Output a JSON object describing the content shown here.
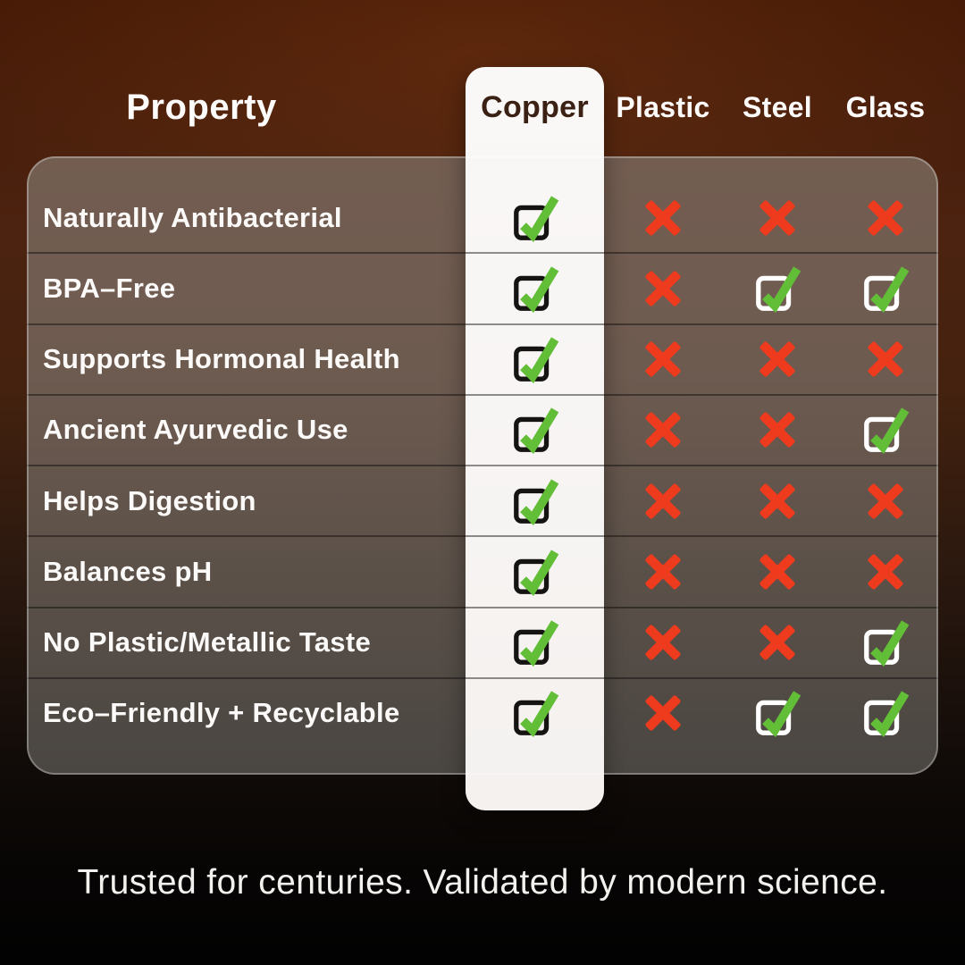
{
  "chart_data": {
    "type": "table",
    "property_header": "Property",
    "columns": [
      "Copper",
      "Plastic",
      "Steel",
      "Glass"
    ],
    "rows": [
      {
        "label": "Naturally Antibacterial",
        "values": [
          "check",
          "cross",
          "cross",
          "cross"
        ]
      },
      {
        "label": "BPA–Free",
        "values": [
          "check",
          "cross",
          "check",
          "check"
        ]
      },
      {
        "label": "Supports Hormonal Health",
        "values": [
          "check",
          "cross",
          "cross",
          "cross"
        ]
      },
      {
        "label": "Ancient Ayurvedic Use",
        "values": [
          "check",
          "cross",
          "cross",
          "check"
        ]
      },
      {
        "label": "Helps Digestion",
        "values": [
          "check",
          "cross",
          "cross",
          "cross"
        ]
      },
      {
        "label": "Balances pH",
        "values": [
          "check",
          "cross",
          "cross",
          "cross"
        ]
      },
      {
        "label": "No Plastic/Metallic Taste",
        "values": [
          "check",
          "cross",
          "cross",
          "check"
        ]
      },
      {
        "label": "Eco–Friendly + Recyclable",
        "values": [
          "check",
          "cross",
          "check",
          "check"
        ]
      }
    ],
    "caption": "Trusted for centuries. Validated by modern science."
  },
  "colors": {
    "check_green": "#62bd37",
    "cross_red": "#ee3a1d",
    "copper_box_outline": "#161412",
    "other_box_outline": "#ffffff",
    "pill_bg": "#f7f5f3",
    "copper_text": "#3a2114"
  },
  "icons": {
    "check": "checked-checkbox-icon",
    "cross": "cross-icon"
  }
}
